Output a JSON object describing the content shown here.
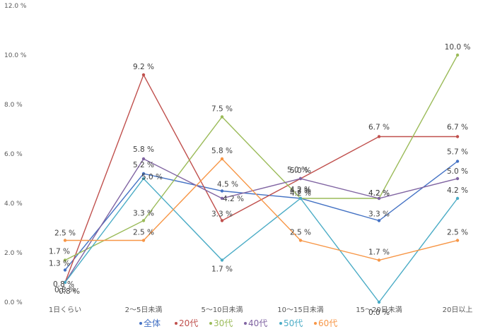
{
  "chart_data": {
    "type": "line",
    "categories": [
      "1日くらい",
      "2～5日未満",
      "5～10日未満",
      "10～15日未満",
      "15～20日未満",
      "20日以上"
    ],
    "ylim": [
      0,
      12
    ],
    "yticks": [
      "0.0 %",
      "2.0 %",
      "4.0 %",
      "6.0 %",
      "8.0 %",
      "10.0 %",
      "12.0 %"
    ],
    "grid": false,
    "legend_position": "bottom",
    "series": [
      {
        "name": "全体",
        "color": "#4472C4",
        "values": [
          1.3,
          5.2,
          4.5,
          4.2,
          3.3,
          5.7
        ],
        "labels": [
          "1.3 %",
          "5.2 %",
          "4.5 %",
          "4.2 %",
          "3.3 %",
          "5.7 %"
        ]
      },
      {
        "name": "20代",
        "color": "#C0504D",
        "values": [
          0.8,
          9.2,
          3.3,
          5.0,
          6.7,
          6.7
        ],
        "labels": [
          "0.8 %",
          "9.2 %",
          "3.3 %",
          "5.0 %",
          "6.7 %",
          "6.7 %"
        ]
      },
      {
        "name": "30代",
        "color": "#9BBB59",
        "values": [
          1.7,
          3.3,
          7.5,
          4.2,
          4.2,
          10.0
        ],
        "labels": [
          "1.7 %",
          "3.3 %",
          "7.5 %",
          "4.2 %",
          "4.2 %",
          "10.0 %"
        ]
      },
      {
        "name": "40代",
        "color": "#8064A2",
        "values": [
          0.8,
          5.8,
          4.2,
          5.0,
          4.2,
          5.0
        ],
        "labels": [
          "0.8 %",
          "5.8 %",
          "4.2 %",
          "5.0 %",
          "4.2 %",
          "5.0 %"
        ]
      },
      {
        "name": "50代",
        "color": "#4BACC6",
        "values": [
          0.8,
          5.0,
          1.7,
          4.2,
          0.0,
          4.2
        ],
        "labels": [
          "0.8 %",
          "5.0 %",
          "1.7 %",
          "4.2 %",
          "0.0 %",
          "4.2 %"
        ]
      },
      {
        "name": "60代",
        "color": "#F79646",
        "values": [
          2.5,
          2.5,
          5.8,
          2.5,
          1.7,
          2.5
        ],
        "labels": [
          "2.5 %",
          "2.5 %",
          "5.8 %",
          "2.5 %",
          "1.7 %",
          "2.5 %"
        ]
      }
    ]
  }
}
